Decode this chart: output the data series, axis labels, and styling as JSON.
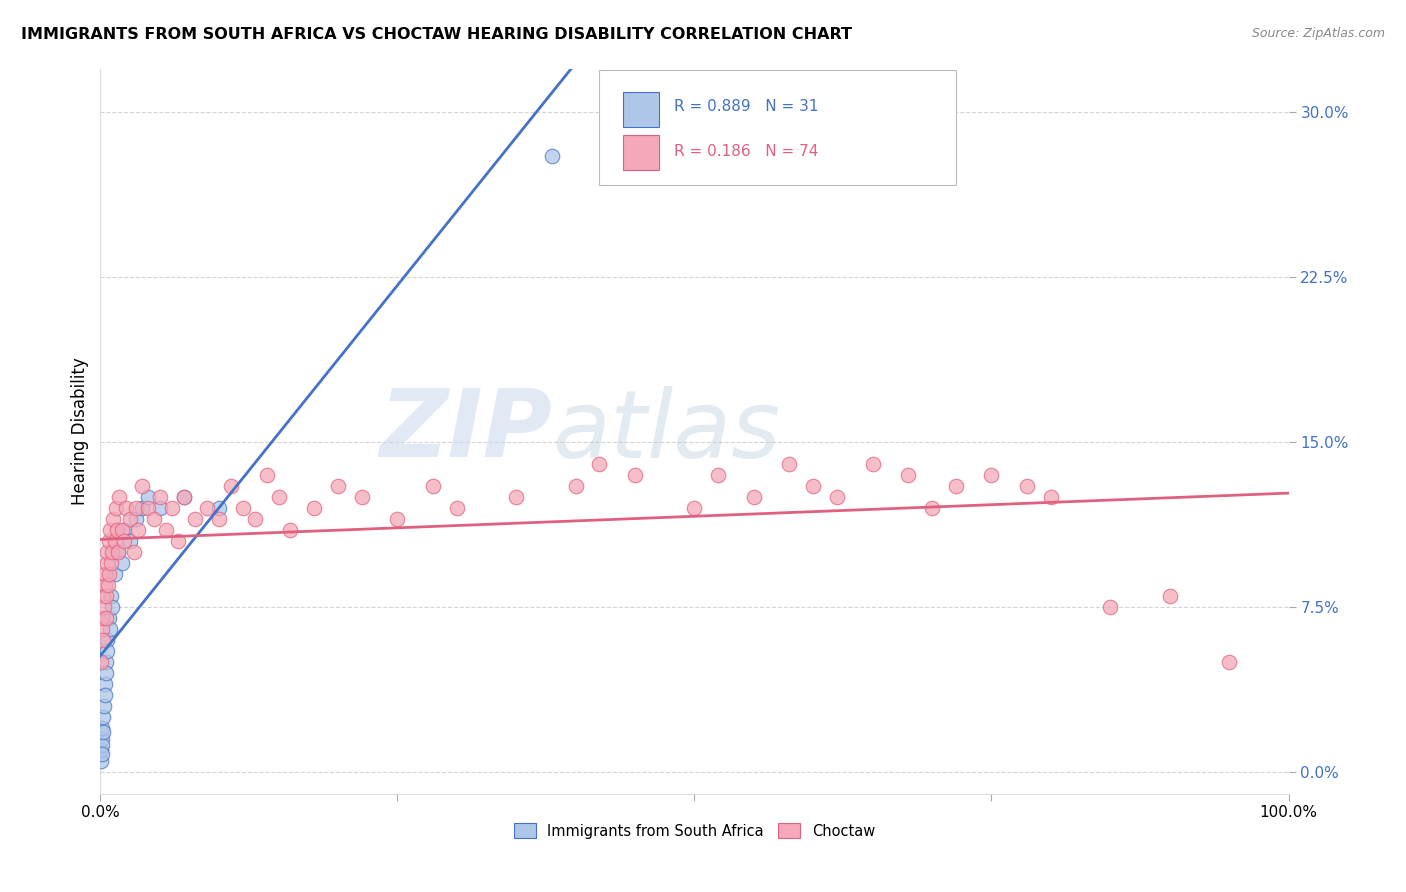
{
  "title": "IMMIGRANTS FROM SOUTH AFRICA VS CHOCTAW HEARING DISABILITY CORRELATION CHART",
  "source": "Source: ZipAtlas.com",
  "ylabel": "Hearing Disability",
  "ytick_values": [
    0.0,
    7.5,
    15.0,
    22.5,
    30.0
  ],
  "xlim": [
    0,
    100
  ],
  "ylim": [
    -1,
    32
  ],
  "legend_blue_label": "Immigrants from South Africa",
  "legend_pink_label": "Choctaw",
  "r_blue": "0.889",
  "n_blue": "31",
  "r_pink": "0.186",
  "n_pink": "74",
  "blue_fill_color": "#aec6e8",
  "blue_edge_color": "#4472c4",
  "blue_line_color": "#4472c4",
  "pink_fill_color": "#f4a8b8",
  "pink_edge_color": "#e06080",
  "pink_line_color": "#e06080",
  "watermark_zip": "ZIP",
  "watermark_atlas": "atlas",
  "grid_color": "#d0d0d0",
  "tick_color": "#4472c4",
  "blue_scatter_x": [
    0.05,
    0.08,
    0.1,
    0.12,
    0.15,
    0.18,
    0.2,
    0.25,
    0.3,
    0.35,
    0.4,
    0.45,
    0.5,
    0.55,
    0.6,
    0.7,
    0.8,
    0.9,
    1.0,
    1.2,
    1.5,
    1.8,
    2.0,
    2.5,
    3.0,
    3.5,
    4.0,
    5.0,
    7.0,
    10.0,
    38.0
  ],
  "blue_scatter_y": [
    0.5,
    1.0,
    1.5,
    1.2,
    0.8,
    2.0,
    1.8,
    2.5,
    3.0,
    4.0,
    3.5,
    5.0,
    4.5,
    6.0,
    5.5,
    7.0,
    6.5,
    8.0,
    7.5,
    9.0,
    10.0,
    9.5,
    11.0,
    10.5,
    11.5,
    12.0,
    12.5,
    12.0,
    12.5,
    12.0,
    28.0
  ],
  "pink_scatter_x": [
    0.05,
    0.1,
    0.15,
    0.2,
    0.25,
    0.3,
    0.35,
    0.4,
    0.45,
    0.5,
    0.55,
    0.6,
    0.65,
    0.7,
    0.75,
    0.8,
    0.9,
    1.0,
    1.1,
    1.2,
    1.3,
    1.4,
    1.5,
    1.6,
    1.8,
    2.0,
    2.2,
    2.5,
    2.8,
    3.0,
    3.2,
    3.5,
    4.0,
    4.5,
    5.0,
    5.5,
    6.0,
    6.5,
    7.0,
    8.0,
    9.0,
    10.0,
    11.0,
    12.0,
    13.0,
    14.0,
    15.0,
    16.0,
    18.0,
    20.0,
    22.0,
    25.0,
    28.0,
    30.0,
    35.0,
    40.0,
    42.0,
    45.0,
    50.0,
    52.0,
    55.0,
    58.0,
    60.0,
    62.0,
    65.0,
    68.0,
    70.0,
    72.0,
    75.0,
    78.0,
    80.0,
    85.0,
    90.0,
    95.0
  ],
  "pink_scatter_y": [
    5.0,
    6.5,
    7.0,
    8.0,
    6.0,
    7.5,
    8.5,
    9.0,
    7.0,
    8.0,
    9.5,
    10.0,
    8.5,
    9.0,
    10.5,
    11.0,
    9.5,
    10.0,
    11.5,
    10.5,
    12.0,
    11.0,
    10.0,
    12.5,
    11.0,
    10.5,
    12.0,
    11.5,
    10.0,
    12.0,
    11.0,
    13.0,
    12.0,
    11.5,
    12.5,
    11.0,
    12.0,
    10.5,
    12.5,
    11.5,
    12.0,
    11.5,
    13.0,
    12.0,
    11.5,
    13.5,
    12.5,
    11.0,
    12.0,
    13.0,
    12.5,
    11.5,
    13.0,
    12.0,
    12.5,
    13.0,
    14.0,
    13.5,
    12.0,
    13.5,
    12.5,
    14.0,
    13.0,
    12.5,
    14.0,
    13.5,
    12.0,
    13.0,
    13.5,
    13.0,
    12.5,
    7.5,
    8.0,
    5.0
  ]
}
